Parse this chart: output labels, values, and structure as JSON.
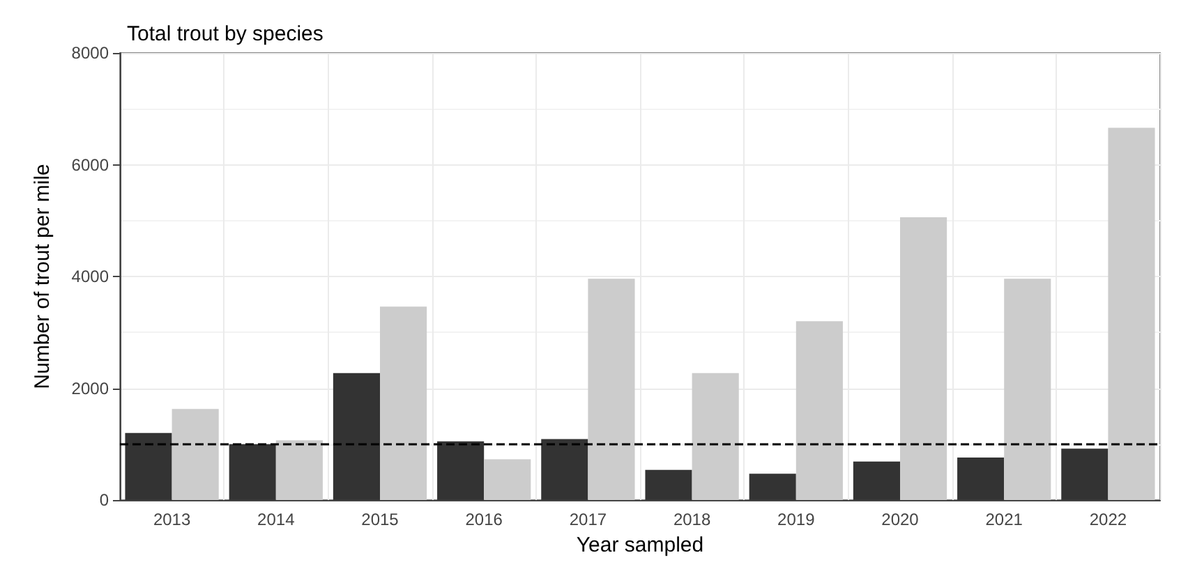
{
  "chart_data": {
    "type": "bar",
    "title": "Total trout by species",
    "xlabel": "Year sampled",
    "ylabel": "Number of trout per mile",
    "categories": [
      "2013",
      "2014",
      "2015",
      "2016",
      "2017",
      "2018",
      "2019",
      "2020",
      "2021",
      "2022"
    ],
    "series": [
      {
        "color": "#333333",
        "values": [
          1200,
          1000,
          2270,
          1050,
          1090,
          540,
          470,
          690,
          760,
          920
        ]
      },
      {
        "color": "#cccccc",
        "values": [
          1630,
          1070,
          3460,
          730,
          3960,
          2270,
          3200,
          5060,
          3960,
          6660
        ]
      }
    ],
    "ylim": [
      0,
      8000
    ],
    "yticks": [
      0,
      2000,
      4000,
      6000,
      8000
    ],
    "grid": true,
    "ref_lines": [
      {
        "axis": "y",
        "value": 1000,
        "color": "#000000",
        "line_style": "dashed"
      }
    ]
  }
}
